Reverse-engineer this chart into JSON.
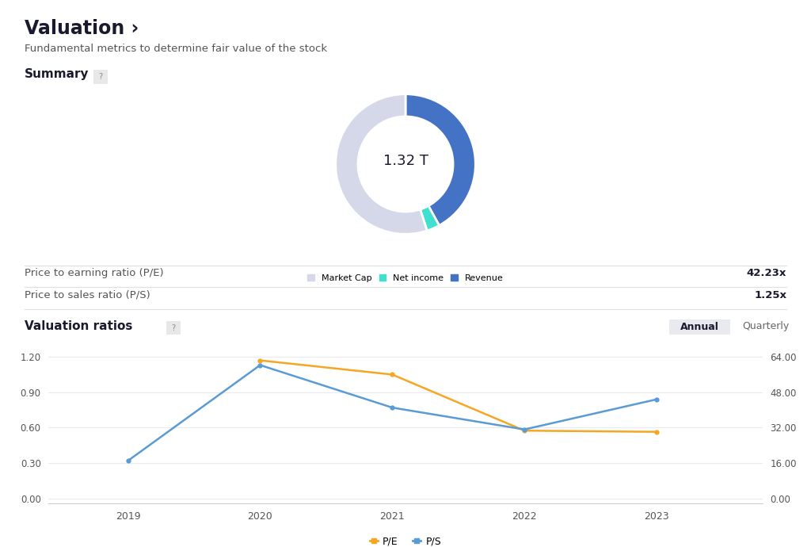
{
  "title": "Valuation ›",
  "subtitle": "Fundamental metrics to determine fair value of the stock",
  "summary_label": "Summary",
  "donut_center_text": "1.32 T",
  "donut_values": [
    55,
    3,
    42
  ],
  "donut_colors": [
    "#d4d8e8",
    "#40e0d0",
    "#4472c4"
  ],
  "donut_legend": [
    "Market Cap",
    "Net income",
    "Revenue"
  ],
  "pe_label": "Price to earning ratio (P/E)",
  "pe_value": "42.23x",
  "ps_label": "Price to sales ratio (P/S)",
  "ps_value": "1.25x",
  "valuation_ratios_label": "Valuation ratios",
  "annual_label": "Annual",
  "quarterly_label": "Quarterly",
  "years": [
    2019,
    2020,
    2021,
    2022,
    2023
  ],
  "pe_data": [
    null,
    1.17,
    1.05,
    0.575,
    0.565
  ],
  "ps_data": [
    0.32,
    1.13,
    0.77,
    0.585,
    0.84
  ],
  "left_yticks": [
    0.0,
    0.3,
    0.6,
    0.9,
    1.2
  ],
  "right_yticks": [
    0.0,
    16.0,
    32.0,
    48.0,
    64.0
  ],
  "pe_color": "#f5a623",
  "ps_color": "#5b9bd5",
  "bg_color": "#ffffff",
  "text_color": "#1a1a2e",
  "subtitle_color": "#555555",
  "grid_color": "#e8eaf0",
  "axis_label_color": "#555555",
  "separator_color": "#e0e0e0"
}
